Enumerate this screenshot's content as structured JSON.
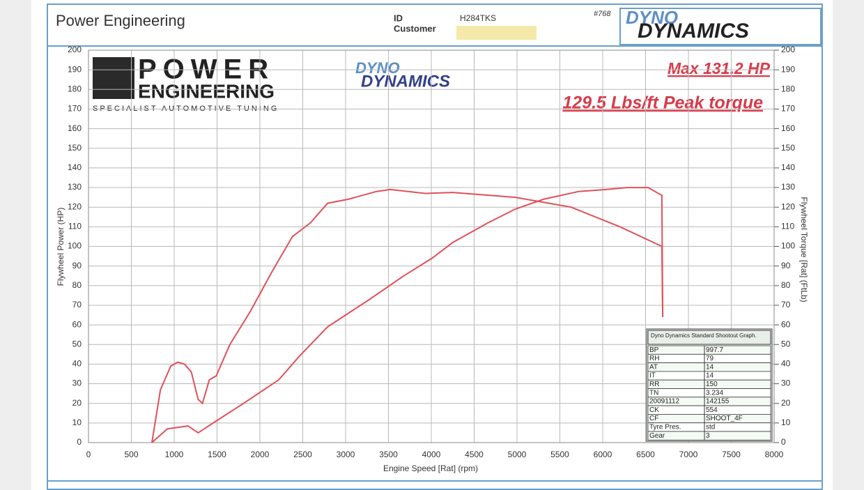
{
  "header": {
    "title": "Power Engineering",
    "id_label": "ID",
    "customer_label": "Customer",
    "id_value": "H284TKS",
    "number": "#768",
    "logo_top": "DYNO",
    "logo_bottom": "DYNAMICS"
  },
  "logos": {
    "brand_line1": "POWER",
    "brand_line2": "ENGINEERING",
    "brand_tagline": "SPECIALIST AUTOMOTIVE TUNING",
    "dyno_top": "DYNO",
    "dyno_bottom": "DYNAMICS"
  },
  "chart_data": {
    "type": "line",
    "annotations": [
      "Max 131.2 HP",
      "129.5 Lbs/ft Peak torque"
    ],
    "xlabel": "Engine Speed [Rat] (rpm)",
    "ylabel": "Flywheel Power (HP)",
    "y2label": "Flywheel Torque [Rat] (FtLb)",
    "xlim": [
      0,
      8000
    ],
    "ylim": [
      0,
      200
    ],
    "y2lim": [
      0,
      200
    ],
    "xticks": [
      0,
      500,
      1000,
      1500,
      2000,
      2500,
      3000,
      3500,
      4000,
      4500,
      5000,
      5500,
      6000,
      6500,
      7000,
      7500,
      8000
    ],
    "yticks": [
      0,
      10,
      20,
      30,
      40,
      50,
      60,
      70,
      80,
      90,
      100,
      110,
      120,
      130,
      140,
      150,
      160,
      170,
      180,
      190,
      200
    ],
    "y2ticks": [
      0,
      10,
      20,
      30,
      40,
      50,
      60,
      70,
      80,
      90,
      100,
      110,
      120,
      130,
      140,
      150,
      160,
      170,
      180,
      190,
      200
    ],
    "grid": true,
    "series": [
      {
        "color": "#e0505a",
        "x": [
          740,
          920,
          1160,
          1280,
          1490,
          1810,
          2220,
          2460,
          2790,
          3280,
          3680,
          4010,
          4250,
          4660,
          4980,
          5310,
          5720,
          6040,
          6280,
          6530,
          6690,
          6700
        ],
        "values": [
          0,
          7,
          8.5,
          5,
          11,
          20,
          32,
          44,
          59,
          73,
          85,
          94,
          102,
          112,
          119,
          124,
          128,
          129,
          130,
          130,
          126,
          64
        ]
      },
      {
        "color": "#e0505a",
        "axis": "y2",
        "x": [
          740,
          840,
          960,
          1040,
          1120,
          1200,
          1280,
          1330,
          1410,
          1490,
          1650,
          1890,
          2140,
          2380,
          2590,
          2790,
          3030,
          3360,
          3520,
          3930,
          4250,
          4980,
          5630,
          6200,
          6690,
          6700
        ],
        "values": [
          0,
          27,
          39,
          41,
          40,
          36,
          22,
          20,
          32,
          34,
          50,
          67,
          87,
          105,
          112,
          122,
          124,
          128,
          129,
          127,
          127.5,
          125,
          120,
          110,
          100,
          64
        ]
      }
    ]
  },
  "info_table": {
    "title": "Dyno Dynamics Standard Shootout Graph.",
    "rows": [
      [
        "BP",
        "997.7"
      ],
      [
        "RH",
        "79"
      ],
      [
        "AT",
        "14"
      ],
      [
        "IT",
        "14"
      ],
      [
        "RR",
        "150"
      ],
      [
        "TN",
        "3.234"
      ],
      [
        "20091112",
        "142155"
      ],
      [
        "CK",
        "554"
      ],
      [
        "CF",
        "SHOOT_4F"
      ],
      [
        "Tyre Pres.",
        "std"
      ],
      [
        "Gear",
        "3"
      ]
    ]
  }
}
